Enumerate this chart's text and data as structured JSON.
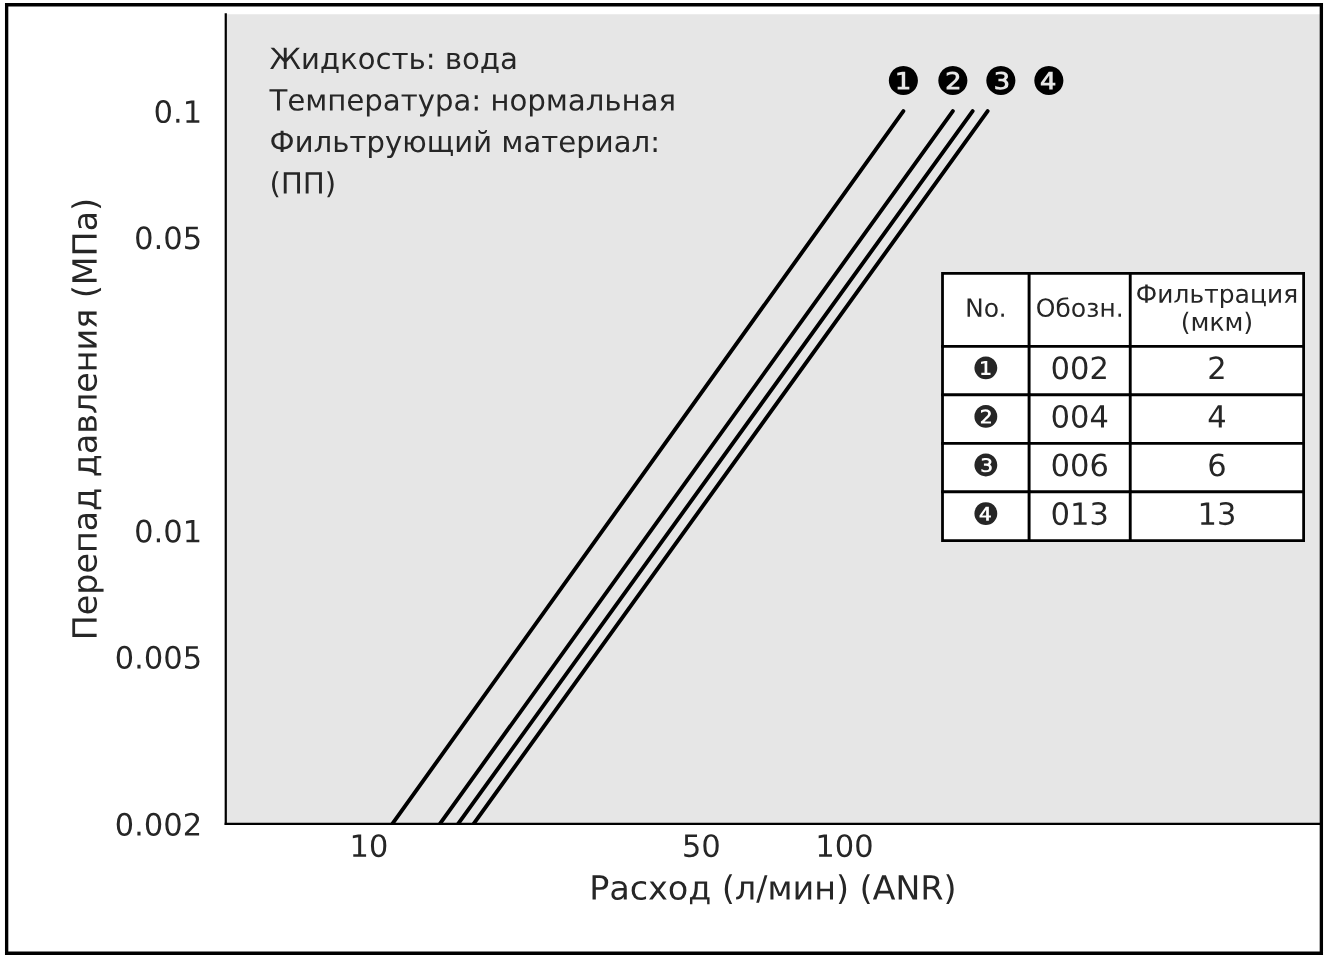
{
  "chart_data": {
    "type": "line",
    "xlabel": "Расход (л/мин) (ANR)",
    "ylabel": "Перепад давления (МПа)",
    "log": "xy",
    "xlim": [
      5,
      1000
    ],
    "ylim": [
      0.002,
      0.17
    ],
    "xticks": [
      10,
      50,
      100
    ],
    "yticks": [
      0.002,
      0.005,
      0.01,
      0.05,
      0.1
    ],
    "grid": false,
    "legend": "right",
    "marker": "none",
    "line_style": "solid",
    "series": [
      {
        "name": "❶",
        "color": "#000000",
        "x": [
          11.2,
          133
        ],
        "values": [
          0.002,
          0.1
        ]
      },
      {
        "name": "❷",
        "color": "#000000",
        "x": [
          14.1,
          169
        ],
        "values": [
          0.002,
          0.1
        ]
      },
      {
        "name": "❸",
        "color": "#000000",
        "x": [
          15.4,
          186
        ],
        "values": [
          0.002,
          0.1
        ]
      },
      {
        "name": "❹",
        "color": "#000000",
        "x": [
          16.6,
          200
        ],
        "values": [
          0.002,
          0.1
        ]
      }
    ],
    "annotations": [
      "Жидкость: вода\nТемпература: нормальная\nФильтрующий материал:\n(ПП)",
      "No.",
      "Обозн.",
      "Фильтрация\n(мкм)",
      "002",
      "2",
      "004",
      "4",
      "006",
      "6",
      "013",
      "13"
    ]
  }
}
